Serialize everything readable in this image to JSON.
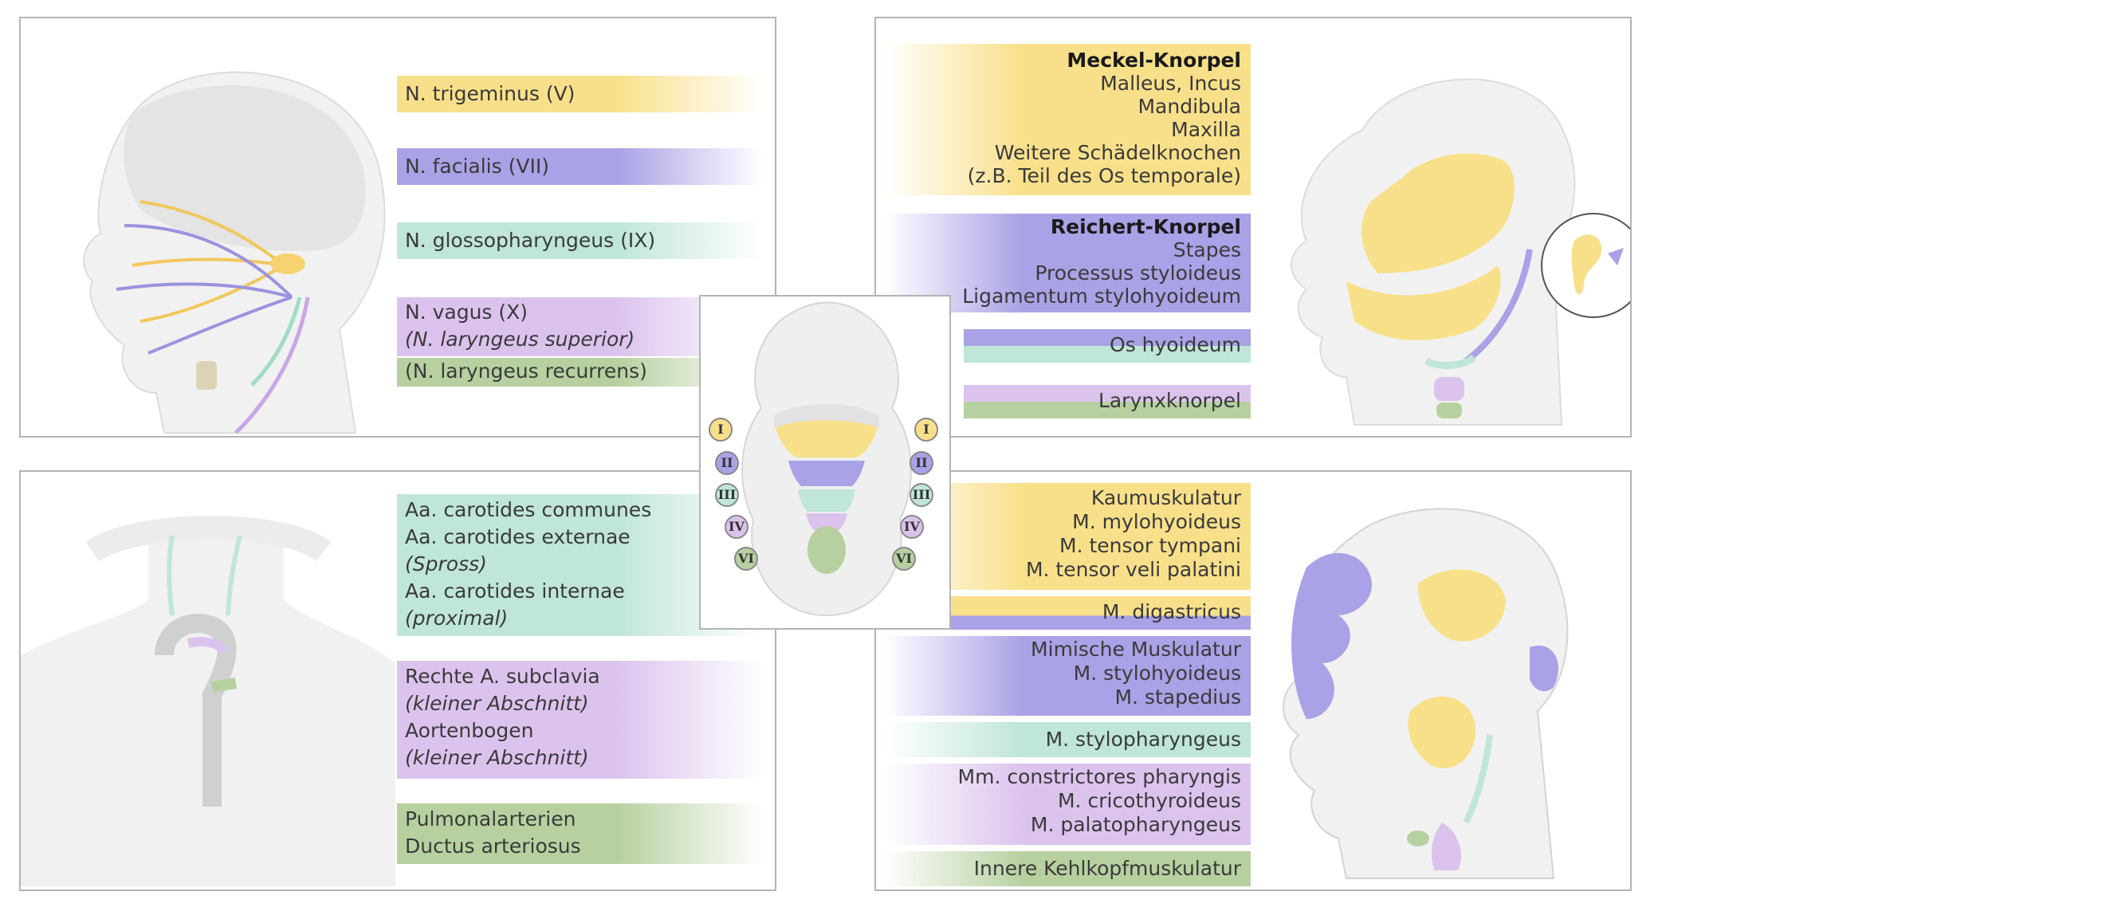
{
  "colors": {
    "arch1": "#f8e08a",
    "arch2": "#a9a2e6",
    "arch3": "#bfe6d6",
    "arch4": "#dcc3ee",
    "arch6": "#b7d0a0"
  },
  "nerves": {
    "items": [
      {
        "text": "N. trigeminus (V)"
      },
      {
        "text": "N. facialis (VII)"
      },
      {
        "text": "N. glossopharyngeus (IX)"
      },
      {
        "text": "N. vagus (X)"
      }
    ],
    "vagus_sub1": "(N. laryngeus superior)",
    "vagus_sub2": "(N. laryngeus recurrens)"
  },
  "cartilage": {
    "meckel": {
      "title": "Meckel-Knorpel",
      "lines": [
        "Malleus, Incus",
        "Mandibula",
        "Maxilla",
        "Weitere Schädelknochen",
        "(z.B. Teil des Os temporale)"
      ]
    },
    "reichert": {
      "title": "Reichert-Knorpel",
      "lines": [
        "Stapes",
        "Processus styloideus",
        "Ligamentum stylohyoideum"
      ]
    },
    "hyoid": "Os hyoideum",
    "larynx": "Larynxknorpel"
  },
  "arteries": {
    "arch3_lines": [
      "Aa. carotides communes",
      "Aa. carotides externae",
      "(Spross)",
      "Aa. carotides internae",
      "(proximal)"
    ],
    "arch4_lines": [
      "Rechte A. subclavia",
      "(kleiner Abschnitt)",
      "Aortenbogen",
      "(kleiner Abschnitt)"
    ],
    "arch6_lines": [
      "Pulmonalarterien",
      "Ductus arteriosus"
    ]
  },
  "muscles": {
    "arch1_lines": [
      "Kaumuskulatur",
      "M. mylohyoideus",
      "M. tensor tympani",
      "M. tensor veli palatini"
    ],
    "digastricus": "M. digastricus",
    "arch2_lines": [
      "Mimische Muskulatur",
      "M. stylohyoideus",
      "M. stapedius"
    ],
    "arch3_line": "M. stylopharyngeus",
    "arch4_lines": [
      "Mm. constrictores pharyngis",
      "M. cricothyroideus",
      "M. palatopharyngeus"
    ],
    "arch6_line": "Innere Kehlkopfmuskulatur"
  },
  "arch_badges": [
    "I",
    "II",
    "III",
    "IV",
    "VI"
  ]
}
